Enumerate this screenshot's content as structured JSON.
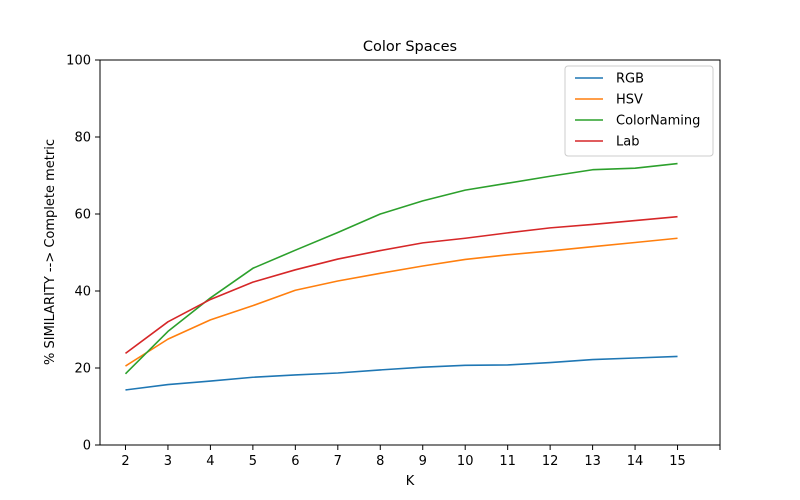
{
  "chart_data": {
    "type": "line",
    "title": "Color Spaces",
    "xlabel": "K",
    "ylabel": "% SIMILARITY --> Complete metric",
    "x": [
      2,
      3,
      4,
      5,
      6,
      7,
      8,
      9,
      10,
      11,
      12,
      13,
      14,
      15
    ],
    "x_ticks": [
      "2",
      "3",
      "4",
      "5",
      "6",
      "7",
      "8",
      "9",
      "10",
      "11",
      "12",
      "13",
      "14",
      "15"
    ],
    "xlim": [
      1.4,
      16
    ],
    "ylim": [
      0,
      100
    ],
    "y_ticks": [
      0,
      20,
      40,
      60,
      80,
      100
    ],
    "grid": false,
    "legend_position": "top-right",
    "series": [
      {
        "name": "RGB",
        "color": "#1f77b4",
        "values": [
          14.3,
          15.7,
          16.6,
          17.6,
          18.2,
          18.7,
          19.5,
          20.2,
          20.7,
          20.8,
          21.4,
          22.2,
          22.6,
          23.0
        ]
      },
      {
        "name": "HSV",
        "color": "#ff7f0e",
        "values": [
          20.5,
          27.5,
          32.5,
          36.2,
          40.2,
          42.6,
          44.6,
          46.5,
          48.2,
          49.4,
          50.4,
          51.5,
          52.6,
          53.7
        ]
      },
      {
        "name": "ColorNaming",
        "color": "#2ca02c",
        "values": [
          18.5,
          29.5,
          38.2,
          45.9,
          50.6,
          55.2,
          60.0,
          63.4,
          66.2,
          68.0,
          69.8,
          71.5,
          71.9,
          73.1
        ]
      },
      {
        "name": "Lab",
        "color": "#d62728",
        "values": [
          23.8,
          32.0,
          37.8,
          42.3,
          45.5,
          48.3,
          50.5,
          52.5,
          53.7,
          55.1,
          56.4,
          57.3,
          58.3,
          59.3
        ]
      }
    ]
  }
}
